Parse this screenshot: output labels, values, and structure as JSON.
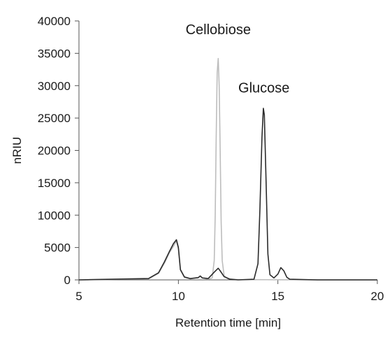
{
  "chart_data": {
    "type": "line",
    "title": "",
    "xlabel": "Retention time [min]",
    "ylabel": "nRIU",
    "xlim": [
      5,
      20
    ],
    "ylim": [
      0,
      40000
    ],
    "xticks": [
      5,
      10,
      15,
      20
    ],
    "yticks": [
      0,
      5000,
      10000,
      15000,
      20000,
      25000,
      30000,
      35000,
      40000
    ],
    "grid": false,
    "legend": "none",
    "annotations": [
      {
        "text": "Cellobiose",
        "x": 12.0,
        "y": 37000
      },
      {
        "text": "Glucose",
        "x": 14.3,
        "y": 28000
      }
    ],
    "series": [
      {
        "color": "#bdbdbd",
        "x": [
          5.0,
          8.5,
          9.0,
          9.3,
          9.55,
          9.75,
          9.9,
          10.0,
          10.1,
          10.3,
          10.6,
          11.0,
          11.1,
          11.2,
          11.5,
          11.7,
          11.8,
          11.85,
          11.9,
          11.95,
          12.0,
          12.05,
          12.1,
          12.15,
          12.2,
          12.3,
          12.5,
          13.0,
          14.0,
          15.0,
          17.0,
          20.0
        ],
        "y": [
          0,
          150,
          1000,
          2600,
          4200,
          5200,
          6000,
          4800,
          1500,
          400,
          150,
          400,
          600,
          300,
          100,
          300,
          3000,
          10000,
          22000,
          32000,
          34200,
          30000,
          20000,
          9000,
          3000,
          600,
          150,
          50,
          30,
          20,
          10,
          0
        ]
      },
      {
        "color": "#2b2b2b",
        "x": [
          5.0,
          8.5,
          9.0,
          9.3,
          9.55,
          9.75,
          9.9,
          10.0,
          10.1,
          10.3,
          10.6,
          11.0,
          11.1,
          11.2,
          11.5,
          11.8,
          12.0,
          12.1,
          12.3,
          12.6,
          13.0,
          13.8,
          14.0,
          14.1,
          14.2,
          14.27,
          14.32,
          14.4,
          14.5,
          14.6,
          14.8,
          15.0,
          15.15,
          15.3,
          15.45,
          15.6,
          17.0,
          20.0
        ],
        "y": [
          0,
          200,
          1100,
          2800,
          4400,
          5600,
          6200,
          5000,
          1600,
          450,
          200,
          350,
          600,
          300,
          200,
          1200,
          1800,
          1400,
          500,
          100,
          0,
          100,
          2500,
          11000,
          22000,
          26500,
          25500,
          16000,
          4000,
          800,
          300,
          900,
          1900,
          1400,
          400,
          100,
          0,
          0
        ]
      }
    ]
  }
}
